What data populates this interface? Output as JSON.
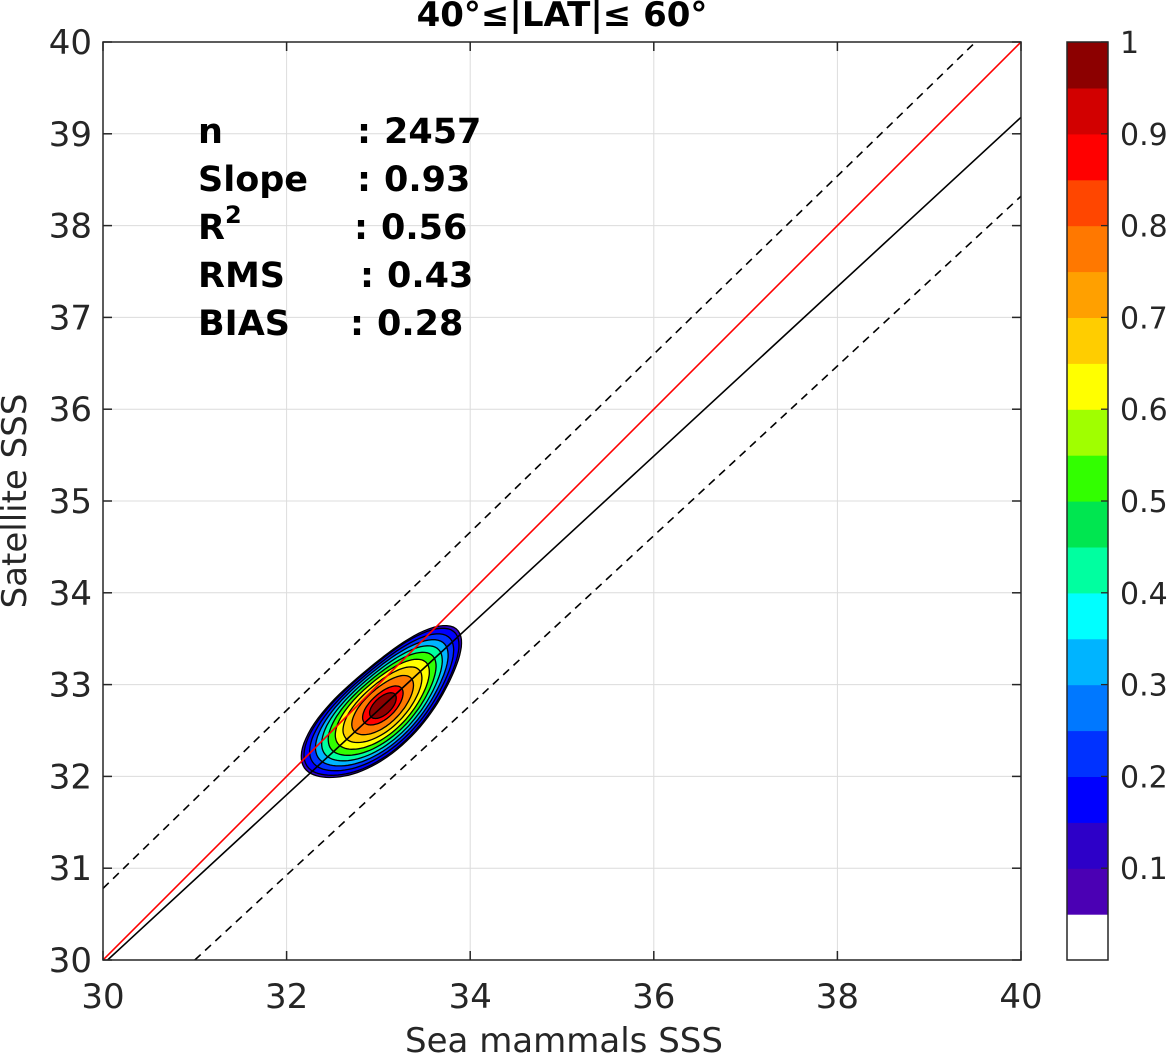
{
  "chart_data": {
    "type": "contour",
    "title": "40°≤|LAT|≤ 60°",
    "xlabel": "Sea mammals SSS",
    "ylabel": "Satellite SSS",
    "xlim": [
      30,
      40
    ],
    "ylim": [
      30,
      40
    ],
    "xticks": [
      "30",
      "32",
      "34",
      "36",
      "38",
      "40"
    ],
    "yticks": [
      "30",
      "31",
      "32",
      "33",
      "34",
      "35",
      "36",
      "37",
      "38",
      "39",
      "40"
    ],
    "grid": true,
    "stats": [
      {
        "label": "n",
        "sep": ": ",
        "value": "2457"
      },
      {
        "label": "Slope",
        "sep": ": ",
        "value": "0.93"
      },
      {
        "label": "R",
        "sup": "2",
        "sep": ": ",
        "value": "0.56"
      },
      {
        "label": "RMS",
        "sep": ": ",
        "value": "0.43"
      },
      {
        "label": "BIAS",
        "sep": ": ",
        "value": "0.28"
      }
    ],
    "lines": [
      {
        "style": "one-to-one",
        "color": "#ff0000",
        "x": [
          30,
          40
        ],
        "y": [
          30,
          40
        ]
      },
      {
        "style": "regression",
        "color": "#000000",
        "x": [
          30.05,
          40
        ],
        "y": [
          30,
          39.18
        ]
      },
      {
        "style": "dashed-upper",
        "color": "#000000",
        "x": [
          30,
          40
        ],
        "y": [
          30.78,
          40.48
        ]
      },
      {
        "style": "dashed-lower",
        "color": "#000000",
        "x": [
          31,
          40
        ],
        "y": [
          30,
          38.32
        ]
      }
    ],
    "density": {
      "center": [
        33.05,
        32.77
      ],
      "levels": [
        0.05,
        0.1,
        0.2,
        0.3,
        0.4,
        0.5,
        0.6,
        0.7,
        0.8,
        0.9,
        0.95
      ],
      "outer_extent": {
        "x": [
          32.08,
          33.95
        ],
        "y": [
          31.62,
          33.75
        ]
      }
    },
    "colorbar": {
      "range": [
        0,
        1
      ],
      "ticks": [
        "0.1",
        "0.2",
        "0.3",
        "0.4",
        "0.5",
        "0.6",
        "0.7",
        "0.8",
        "0.9",
        "1"
      ],
      "colors": [
        "#ffffff",
        "#4b00b4",
        "#2d00c8",
        "#0000ff",
        "#0032ff",
        "#0078ff",
        "#00b4ff",
        "#00ffff",
        "#00ffa0",
        "#00e650",
        "#32ff00",
        "#a0ff00",
        "#ffff00",
        "#ffcd00",
        "#ffa000",
        "#ff7800",
        "#ff4600",
        "#ff0000",
        "#d20000",
        "#8c0000"
      ]
    }
  }
}
